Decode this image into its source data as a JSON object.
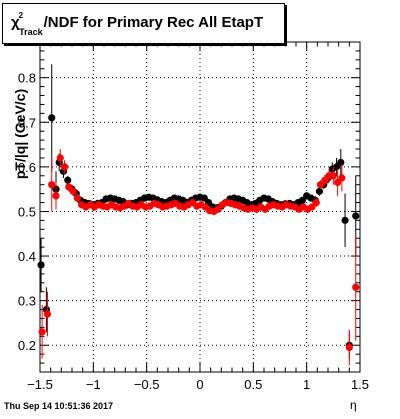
{
  "title": {
    "chi": "χ",
    "sup": "2",
    "sub": "Track",
    "rest": "/NDF for Primary Rec All EtapT"
  },
  "timestamp": "Thu Sep 14 10:51:36 2017",
  "chart_data": {
    "type": "scatter",
    "xlabel": "η",
    "ylabel": "pT/|q| (GeV/c)",
    "xlim": [
      -1.5,
      1.5
    ],
    "ylim": [
      0.14,
      0.88
    ],
    "xticks": [
      "−1.5",
      "−1",
      "−0.5",
      "0",
      "0.5",
      "1",
      "1.5"
    ],
    "xtick_values": [
      -1.5,
      -1,
      -0.5,
      0,
      0.5,
      1,
      1.5
    ],
    "yticks": [
      "0.2",
      "0.3",
      "0.4",
      "0.5",
      "0.6",
      "0.7",
      "0.8"
    ],
    "ytick_values": [
      0.2,
      0.3,
      0.4,
      0.5,
      0.6,
      0.7,
      0.8
    ],
    "grid": true,
    "series": [
      {
        "color": "#000000",
        "points": [
          {
            "x": -1.49,
            "y": 0.38,
            "err": 0.06
          },
          {
            "x": -1.44,
            "y": 0.28,
            "err": 0.05
          },
          {
            "x": -1.39,
            "y": 0.71,
            "err": 0.12
          },
          {
            "x": -1.35,
            "y": 0.55,
            "err": 0.04
          },
          {
            "x": -1.32,
            "y": 0.61,
            "err": 0.02
          },
          {
            "x": -1.28,
            "y": 0.59,
            "err": 0.015
          },
          {
            "x": -1.24,
            "y": 0.57,
            "err": 0.01
          },
          {
            "x": -1.2,
            "y": 0.55,
            "err": 0.01
          },
          {
            "x": -1.16,
            "y": 0.54,
            "err": 0.01
          },
          {
            "x": -1.12,
            "y": 0.525,
            "err": 0.008
          },
          {
            "x": -1.08,
            "y": 0.52,
            "err": 0.008
          },
          {
            "x": -1.04,
            "y": 0.518,
            "err": 0.008
          },
          {
            "x": -1.0,
            "y": 0.515,
            "err": 0.008
          },
          {
            "x": -0.96,
            "y": 0.518,
            "err": 0.008
          },
          {
            "x": -0.92,
            "y": 0.52,
            "err": 0.008
          },
          {
            "x": -0.88,
            "y": 0.528,
            "err": 0.008
          },
          {
            "x": -0.84,
            "y": 0.53,
            "err": 0.008
          },
          {
            "x": -0.8,
            "y": 0.528,
            "err": 0.008
          },
          {
            "x": -0.76,
            "y": 0.525,
            "err": 0.008
          },
          {
            "x": -0.72,
            "y": 0.522,
            "err": 0.008
          },
          {
            "x": -0.68,
            "y": 0.515,
            "err": 0.008
          },
          {
            "x": -0.64,
            "y": 0.518,
            "err": 0.008
          },
          {
            "x": -0.6,
            "y": 0.52,
            "err": 0.008
          },
          {
            "x": -0.56,
            "y": 0.525,
            "err": 0.008
          },
          {
            "x": -0.52,
            "y": 0.53,
            "err": 0.008
          },
          {
            "x": -0.48,
            "y": 0.532,
            "err": 0.008
          },
          {
            "x": -0.44,
            "y": 0.53,
            "err": 0.008
          },
          {
            "x": -0.4,
            "y": 0.526,
            "err": 0.008
          },
          {
            "x": -0.36,
            "y": 0.522,
            "err": 0.008
          },
          {
            "x": -0.32,
            "y": 0.52,
            "err": 0.008
          },
          {
            "x": -0.28,
            "y": 0.525,
            "err": 0.008
          },
          {
            "x": -0.24,
            "y": 0.53,
            "err": 0.008
          },
          {
            "x": -0.2,
            "y": 0.528,
            "err": 0.008
          },
          {
            "x": -0.16,
            "y": 0.525,
            "err": 0.008
          },
          {
            "x": -0.12,
            "y": 0.52,
            "err": 0.008
          },
          {
            "x": -0.08,
            "y": 0.525,
            "err": 0.008
          },
          {
            "x": -0.04,
            "y": 0.53,
            "err": 0.008
          },
          {
            "x": 0.0,
            "y": 0.532,
            "err": 0.008
          },
          {
            "x": 0.04,
            "y": 0.53,
            "err": 0.008
          },
          {
            "x": 0.08,
            "y": 0.52,
            "err": 0.008
          },
          {
            "x": 0.12,
            "y": 0.51,
            "err": 0.008
          },
          {
            "x": 0.16,
            "y": 0.508,
            "err": 0.008
          },
          {
            "x": 0.2,
            "y": 0.512,
            "err": 0.008
          },
          {
            "x": 0.24,
            "y": 0.52,
            "err": 0.008
          },
          {
            "x": 0.28,
            "y": 0.528,
            "err": 0.008
          },
          {
            "x": 0.32,
            "y": 0.53,
            "err": 0.008
          },
          {
            "x": 0.36,
            "y": 0.528,
            "err": 0.008
          },
          {
            "x": 0.4,
            "y": 0.525,
            "err": 0.008
          },
          {
            "x": 0.44,
            "y": 0.52,
            "err": 0.008
          },
          {
            "x": 0.48,
            "y": 0.515,
            "err": 0.008
          },
          {
            "x": 0.52,
            "y": 0.518,
            "err": 0.008
          },
          {
            "x": 0.56,
            "y": 0.525,
            "err": 0.008
          },
          {
            "x": 0.6,
            "y": 0.53,
            "err": 0.008
          },
          {
            "x": 0.64,
            "y": 0.528,
            "err": 0.008
          },
          {
            "x": 0.68,
            "y": 0.522,
            "err": 0.008
          },
          {
            "x": 0.72,
            "y": 0.518,
            "err": 0.008
          },
          {
            "x": 0.76,
            "y": 0.515,
            "err": 0.008
          },
          {
            "x": 0.8,
            "y": 0.517,
            "err": 0.008
          },
          {
            "x": 0.84,
            "y": 0.518,
            "err": 0.008
          },
          {
            "x": 0.88,
            "y": 0.515,
            "err": 0.008
          },
          {
            "x": 0.92,
            "y": 0.52,
            "err": 0.008
          },
          {
            "x": 0.96,
            "y": 0.525,
            "err": 0.008
          },
          {
            "x": 1.0,
            "y": 0.535,
            "err": 0.008
          },
          {
            "x": 1.04,
            "y": 0.53,
            "err": 0.008
          },
          {
            "x": 1.08,
            "y": 0.525,
            "err": 0.01
          },
          {
            "x": 1.12,
            "y": 0.545,
            "err": 0.01
          },
          {
            "x": 1.16,
            "y": 0.56,
            "err": 0.01
          },
          {
            "x": 1.2,
            "y": 0.575,
            "err": 0.012
          },
          {
            "x": 1.24,
            "y": 0.595,
            "err": 0.015
          },
          {
            "x": 1.28,
            "y": 0.6,
            "err": 0.02
          },
          {
            "x": 1.32,
            "y": 0.61,
            "err": 0.03
          },
          {
            "x": 1.36,
            "y": 0.48,
            "err": 0.06
          },
          {
            "x": 1.4,
            "y": 0.2,
            "err": 0.03
          },
          {
            "x": 1.46,
            "y": 0.49,
            "err": 0.09
          }
        ]
      },
      {
        "color": "#ff0000",
        "points": [
          {
            "x": -1.48,
            "y": 0.23,
            "err": 0.06
          },
          {
            "x": -1.43,
            "y": 0.27,
            "err": 0.05
          },
          {
            "x": -1.39,
            "y": 0.56,
            "err": 0.06
          },
          {
            "x": -1.35,
            "y": 0.535,
            "err": 0.03
          },
          {
            "x": -1.31,
            "y": 0.62,
            "err": 0.02
          },
          {
            "x": -1.27,
            "y": 0.6,
            "err": 0.015
          },
          {
            "x": -1.23,
            "y": 0.555,
            "err": 0.01
          },
          {
            "x": -1.19,
            "y": 0.545,
            "err": 0.01
          },
          {
            "x": -1.15,
            "y": 0.53,
            "err": 0.01
          },
          {
            "x": -1.11,
            "y": 0.515,
            "err": 0.008
          },
          {
            "x": -1.07,
            "y": 0.51,
            "err": 0.008
          },
          {
            "x": -1.03,
            "y": 0.515,
            "err": 0.008
          },
          {
            "x": -0.99,
            "y": 0.51,
            "err": 0.008
          },
          {
            "x": -0.95,
            "y": 0.515,
            "err": 0.008
          },
          {
            "x": -0.91,
            "y": 0.512,
            "err": 0.008
          },
          {
            "x": -0.87,
            "y": 0.51,
            "err": 0.008
          },
          {
            "x": -0.83,
            "y": 0.515,
            "err": 0.008
          },
          {
            "x": -0.79,
            "y": 0.51,
            "err": 0.008
          },
          {
            "x": -0.75,
            "y": 0.508,
            "err": 0.008
          },
          {
            "x": -0.71,
            "y": 0.512,
            "err": 0.008
          },
          {
            "x": -0.67,
            "y": 0.518,
            "err": 0.008
          },
          {
            "x": -0.63,
            "y": 0.512,
            "err": 0.008
          },
          {
            "x": -0.59,
            "y": 0.51,
            "err": 0.008
          },
          {
            "x": -0.55,
            "y": 0.515,
            "err": 0.008
          },
          {
            "x": -0.51,
            "y": 0.51,
            "err": 0.008
          },
          {
            "x": -0.47,
            "y": 0.512,
            "err": 0.008
          },
          {
            "x": -0.43,
            "y": 0.518,
            "err": 0.008
          },
          {
            "x": -0.39,
            "y": 0.515,
            "err": 0.008
          },
          {
            "x": -0.35,
            "y": 0.51,
            "err": 0.008
          },
          {
            "x": -0.31,
            "y": 0.512,
            "err": 0.008
          },
          {
            "x": -0.27,
            "y": 0.515,
            "err": 0.008
          },
          {
            "x": -0.23,
            "y": 0.518,
            "err": 0.008
          },
          {
            "x": -0.19,
            "y": 0.512,
            "err": 0.008
          },
          {
            "x": -0.15,
            "y": 0.51,
            "err": 0.008
          },
          {
            "x": -0.11,
            "y": 0.515,
            "err": 0.008
          },
          {
            "x": -0.07,
            "y": 0.52,
            "err": 0.008
          },
          {
            "x": -0.03,
            "y": 0.512,
            "err": 0.008
          },
          {
            "x": 0.01,
            "y": 0.515,
            "err": 0.008
          },
          {
            "x": 0.05,
            "y": 0.51,
            "err": 0.008
          },
          {
            "x": 0.09,
            "y": 0.502,
            "err": 0.008
          },
          {
            "x": 0.13,
            "y": 0.5,
            "err": 0.008
          },
          {
            "x": 0.17,
            "y": 0.505,
            "err": 0.008
          },
          {
            "x": 0.21,
            "y": 0.515,
            "err": 0.008
          },
          {
            "x": 0.25,
            "y": 0.52,
            "err": 0.008
          },
          {
            "x": 0.29,
            "y": 0.518,
            "err": 0.008
          },
          {
            "x": 0.33,
            "y": 0.515,
            "err": 0.008
          },
          {
            "x": 0.37,
            "y": 0.512,
            "err": 0.008
          },
          {
            "x": 0.41,
            "y": 0.508,
            "err": 0.008
          },
          {
            "x": 0.45,
            "y": 0.505,
            "err": 0.008
          },
          {
            "x": 0.49,
            "y": 0.508,
            "err": 0.008
          },
          {
            "x": 0.53,
            "y": 0.505,
            "err": 0.008
          },
          {
            "x": 0.57,
            "y": 0.51,
            "err": 0.008
          },
          {
            "x": 0.61,
            "y": 0.505,
            "err": 0.008
          },
          {
            "x": 0.65,
            "y": 0.512,
            "err": 0.008
          },
          {
            "x": 0.69,
            "y": 0.515,
            "err": 0.008
          },
          {
            "x": 0.73,
            "y": 0.512,
            "err": 0.008
          },
          {
            "x": 0.77,
            "y": 0.51,
            "err": 0.008
          },
          {
            "x": 0.81,
            "y": 0.515,
            "err": 0.008
          },
          {
            "x": 0.85,
            "y": 0.512,
            "err": 0.008
          },
          {
            "x": 0.89,
            "y": 0.51,
            "err": 0.008
          },
          {
            "x": 0.93,
            "y": 0.505,
            "err": 0.008
          },
          {
            "x": 0.97,
            "y": 0.51,
            "err": 0.008
          },
          {
            "x": 1.01,
            "y": 0.505,
            "err": 0.008
          },
          {
            "x": 1.05,
            "y": 0.51,
            "err": 0.008
          },
          {
            "x": 1.09,
            "y": 0.52,
            "err": 0.01
          },
          {
            "x": 1.13,
            "y": 0.56,
            "err": 0.01
          },
          {
            "x": 1.17,
            "y": 0.57,
            "err": 0.012
          },
          {
            "x": 1.21,
            "y": 0.58,
            "err": 0.015
          },
          {
            "x": 1.25,
            "y": 0.58,
            "err": 0.02
          },
          {
            "x": 1.29,
            "y": 0.565,
            "err": 0.03
          },
          {
            "x": 1.33,
            "y": 0.575,
            "err": 0.03
          },
          {
            "x": 1.4,
            "y": 0.195,
            "err": 0.04
          },
          {
            "x": 1.46,
            "y": 0.33,
            "err": 0.12
          }
        ]
      }
    ]
  }
}
